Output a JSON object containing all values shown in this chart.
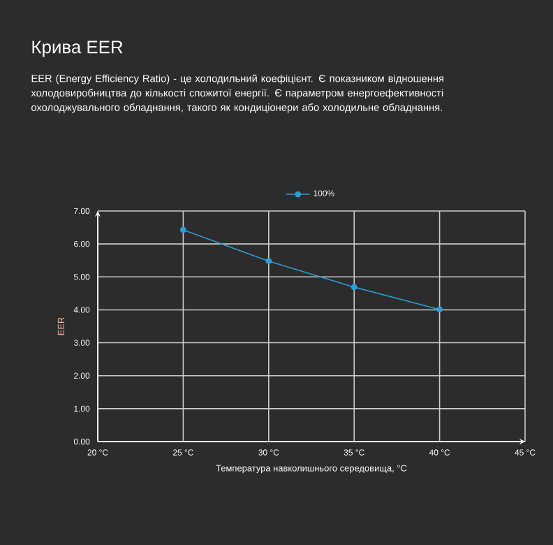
{
  "chart_data": {
    "type": "line",
    "title": "Крива EER",
    "subtitle": "EER (Energy Efficiency Ratio) - це холодильний коефіцієнт. Є показником відношення холодовиробництва до кількості спожитої енергії. Є параметром енергоефективності охолоджувального обладнання, такого як кондиціонери або холодильне обладнання.",
    "xlabel": "Температура навколишнього середовища, °C",
    "ylabel": "EER",
    "x": [
      25,
      30,
      35,
      40
    ],
    "series": [
      {
        "name": "100%",
        "color": "#2a9fd6",
        "values": [
          6.43,
          5.48,
          4.69,
          4.01
        ]
      }
    ],
    "xlim": [
      20,
      45
    ],
    "ylim": [
      0,
      7
    ],
    "xticks": [
      {
        "value": 20,
        "label": "20 °C"
      },
      {
        "value": 25,
        "label": "25 °C"
      },
      {
        "value": 30,
        "label": "30 °C"
      },
      {
        "value": 35,
        "label": "35 °C"
      },
      {
        "value": 40,
        "label": "40 °C"
      },
      {
        "value": 45,
        "label": "45 °C"
      }
    ],
    "yticks": [
      {
        "value": 0,
        "label": "0.00"
      },
      {
        "value": 1,
        "label": "1.00"
      },
      {
        "value": 2,
        "label": "2.00"
      },
      {
        "value": 3,
        "label": "3.00"
      },
      {
        "value": 4,
        "label": "4.00"
      },
      {
        "value": 5,
        "label": "5.00"
      },
      {
        "value": 6,
        "label": "6.00"
      },
      {
        "value": 7,
        "label": "7.00"
      }
    ],
    "grid": true,
    "legend": "top",
    "marker": "circle"
  }
}
